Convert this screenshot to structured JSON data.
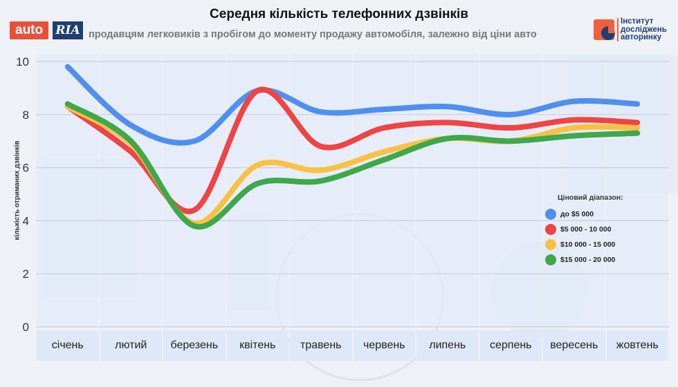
{
  "header": {
    "title": "Середня кількість телефонних дзвінків",
    "subtitle": "продавцям легковиків з пробігом до моменту продажу автомобіля, залежно від ціни авто",
    "logo_auto": "auto",
    "logo_ria": "RIA",
    "institute_lines": [
      "Інститут",
      "досліджень",
      "авторинку"
    ]
  },
  "chart_data": {
    "type": "line",
    "title": "Середня кількість телефонних дзвінків",
    "ylabel": "кількість отриманих дзвінків",
    "xlabel": "",
    "ylim": [
      0,
      10
    ],
    "yticks": [
      "0",
      "2",
      "4",
      "6",
      "8",
      "10"
    ],
    "grid": true,
    "categories": [
      "січень",
      "лютий",
      "березень",
      "квітень",
      "травень",
      "червень",
      "липень",
      "серпень",
      "вересень",
      "жовтень"
    ],
    "legend_title": "Ціновий діапазон:",
    "legend_position": "right",
    "series": [
      {
        "name": "до $5 000",
        "color": "#4f8ff0",
        "values": [
          9.8,
          7.6,
          7.0,
          8.9,
          8.1,
          8.2,
          8.3,
          8.0,
          8.5,
          8.4
        ]
      },
      {
        "name": "$5 000 - 10 000",
        "color": "#ef4444",
        "values": [
          8.3,
          6.6,
          4.4,
          8.9,
          6.8,
          7.5,
          7.7,
          7.5,
          7.8,
          7.7
        ]
      },
      {
        "name": "$10 000 - 15 000",
        "color": "#f9c143",
        "values": [
          8.3,
          6.9,
          3.9,
          6.1,
          5.9,
          6.6,
          7.1,
          7.0,
          7.5,
          7.5
        ]
      },
      {
        "name": "$15 000 - 20 000",
        "color": "#3ea84a",
        "values": [
          8.4,
          7.0,
          3.8,
          5.4,
          5.5,
          6.3,
          7.1,
          7.0,
          7.2,
          7.3
        ]
      }
    ]
  }
}
